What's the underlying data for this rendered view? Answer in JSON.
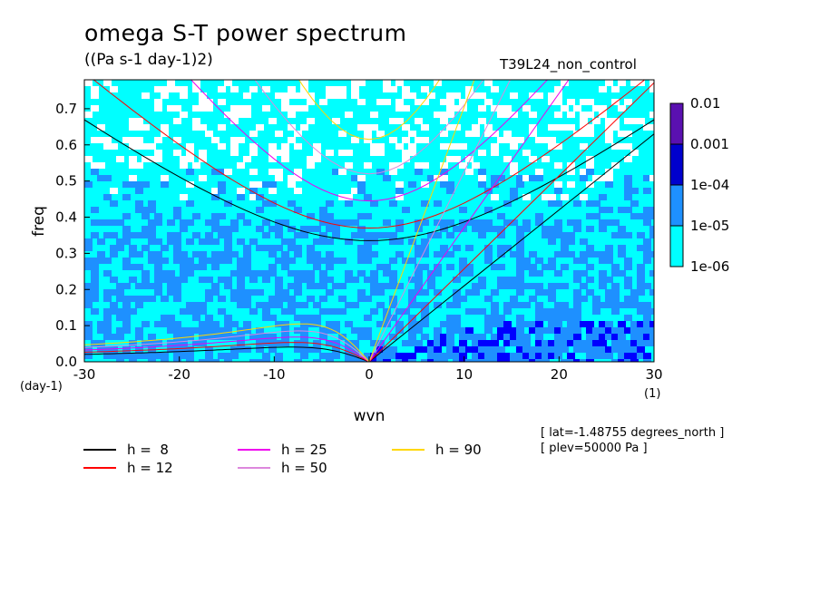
{
  "title": "omega S-T power spectrum",
  "subtitle": "((Pa s-1 day-1)2)",
  "run_name": "T39L24_non_control",
  "info": [
    "[ lat=-1.48755 degrees_north ]",
    "[ plev=50000 Pa ]"
  ],
  "colors": {
    "background_power": "#00ffff",
    "low": "#00ffff",
    "mid": "#1e90ff",
    "high": "#0000ff",
    "higher": "#0000cd",
    "highest": "#5a10b0",
    "h8": "#000000",
    "h12": "#ff0000",
    "h25": "#ee00ee",
    "h50": "#dd88dd",
    "h90": "#ffd700"
  },
  "chart_data": {
    "type": "heatmap",
    "title": "omega S-T power spectrum",
    "subtitle": "((Pa s-1 day-1)2)",
    "xlabel": "wvn",
    "xunit": "(1)",
    "ylabel": "freq",
    "yunit": "(day-1)",
    "xlim": [
      -30,
      30
    ],
    "ylim": [
      0,
      0.78
    ],
    "xticks": [
      -30,
      -20,
      -10,
      0,
      10,
      20,
      30
    ],
    "xtick_labels": [
      "-30",
      "-20",
      "-10",
      "0",
      "10",
      "20",
      "30"
    ],
    "yticks": [
      0,
      0.1,
      0.2,
      0.3,
      0.4,
      0.5,
      0.6,
      0.7
    ],
    "ytick_labels": [
      "0.0",
      "0.1",
      "0.2",
      "0.3",
      "0.4",
      "0.5",
      "0.6",
      "0.7"
    ],
    "colorbar": {
      "levels": [
        "1e-06",
        "1e-05",
        "1e-04",
        "0.001",
        "0.01"
      ],
      "colors": [
        "#00ffff",
        "#1e90ff",
        "#0000cd",
        "#5a10b0"
      ]
    },
    "dispersion_curves": [
      {
        "label": "h =  8",
        "h": 8,
        "color": "#000000"
      },
      {
        "label": "h = 12",
        "h": 12,
        "color": "#ff0000"
      },
      {
        "label": "h = 25",
        "h": 25,
        "color": "#ee00ee"
      },
      {
        "label": "h = 50",
        "h": 50,
        "color": "#dd88dd"
      },
      {
        "label": "h = 90",
        "h": 90,
        "color": "#ffd700"
      }
    ],
    "kelvin_slope_per_h": 0.0033,
    "ig_min_freq": [
      {
        "h": 8,
        "n1": 0.335
      },
      {
        "h": 12,
        "n1": 0.37
      },
      {
        "h": 25,
        "n1": 0.445
      },
      {
        "h": 50,
        "n1": 0.52
      },
      {
        "h": 90,
        "n1": 0.615
      }
    ]
  }
}
